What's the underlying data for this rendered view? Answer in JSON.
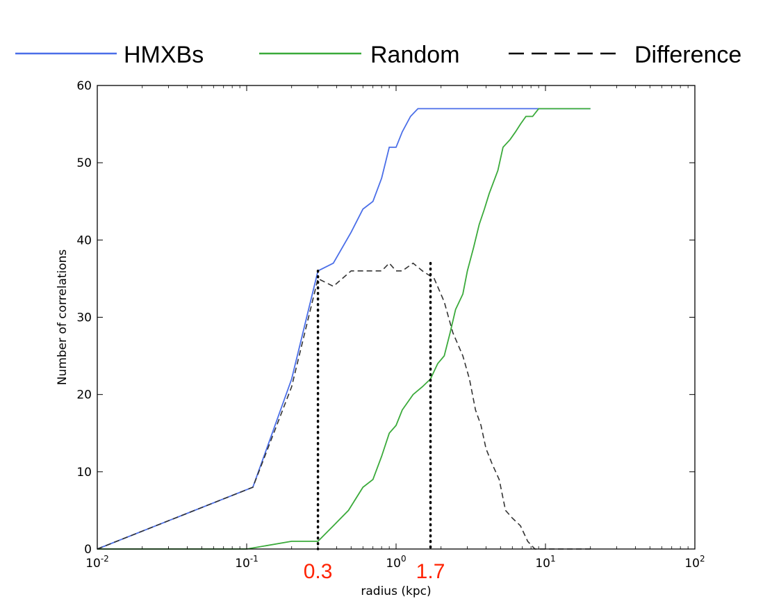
{
  "chart_data": {
    "type": "line",
    "title": "",
    "xlabel": "radius (kpc)",
    "ylabel": "Number of correlations",
    "x_scale": "log",
    "xlim": [
      0.01,
      100
    ],
    "ylim": [
      0,
      60
    ],
    "grid": false,
    "legend_position": "top",
    "x_ticks": [
      {
        "value": 0.01,
        "base": "10",
        "exp": "-2"
      },
      {
        "value": 0.1,
        "base": "10",
        "exp": "-1"
      },
      {
        "value": 1,
        "base": "10",
        "exp": "0"
      },
      {
        "value": 10,
        "base": "10",
        "exp": "1"
      },
      {
        "value": 100,
        "base": "10",
        "exp": "2"
      }
    ],
    "y_ticks": [
      0,
      10,
      20,
      30,
      40,
      50,
      60
    ],
    "series": [
      {
        "name": "HMXBs",
        "color": "#4a6ee8",
        "style": "solid",
        "points": [
          [
            0.01,
            0
          ],
          [
            0.11,
            8
          ],
          [
            0.2,
            22
          ],
          [
            0.3,
            36
          ],
          [
            0.38,
            37
          ],
          [
            0.5,
            41
          ],
          [
            0.6,
            44
          ],
          [
            0.7,
            45
          ],
          [
            0.8,
            48
          ],
          [
            0.9,
            52
          ],
          [
            1.0,
            52
          ],
          [
            1.1,
            54
          ],
          [
            1.25,
            56
          ],
          [
            1.4,
            57
          ],
          [
            3,
            57
          ],
          [
            10,
            57
          ],
          [
            20,
            57
          ]
        ]
      },
      {
        "name": "Random",
        "color": "#3aaa3a",
        "style": "solid",
        "points": [
          [
            0.01,
            0
          ],
          [
            0.1,
            0
          ],
          [
            0.2,
            1
          ],
          [
            0.3,
            1
          ],
          [
            0.38,
            3
          ],
          [
            0.48,
            5
          ],
          [
            0.6,
            8
          ],
          [
            0.7,
            9
          ],
          [
            0.8,
            12
          ],
          [
            0.9,
            15
          ],
          [
            1.0,
            16
          ],
          [
            1.1,
            18
          ],
          [
            1.3,
            20
          ],
          [
            1.5,
            21
          ],
          [
            1.7,
            22
          ],
          [
            1.9,
            24
          ],
          [
            2.1,
            25
          ],
          [
            2.3,
            28
          ],
          [
            2.5,
            31
          ],
          [
            2.8,
            33
          ],
          [
            3.0,
            36
          ],
          [
            3.3,
            39
          ],
          [
            3.6,
            42
          ],
          [
            3.9,
            44
          ],
          [
            4.2,
            46
          ],
          [
            4.8,
            49
          ],
          [
            5.2,
            52
          ],
          [
            5.8,
            53
          ],
          [
            6.3,
            54
          ],
          [
            6.8,
            55
          ],
          [
            7.4,
            56
          ],
          [
            8.2,
            56
          ],
          [
            9,
            57
          ],
          [
            20,
            57
          ]
        ]
      },
      {
        "name": "Difference",
        "color": "#333333",
        "style": "dashed",
        "points": [
          [
            0.01,
            0
          ],
          [
            0.11,
            8
          ],
          [
            0.2,
            21
          ],
          [
            0.3,
            35
          ],
          [
            0.38,
            34
          ],
          [
            0.5,
            36
          ],
          [
            0.6,
            36
          ],
          [
            0.7,
            36
          ],
          [
            0.8,
            36
          ],
          [
            0.9,
            37
          ],
          [
            1.0,
            36
          ],
          [
            1.1,
            36
          ],
          [
            1.3,
            37
          ],
          [
            1.5,
            36
          ],
          [
            1.8,
            35
          ],
          [
            2.1,
            32
          ],
          [
            2.4,
            28
          ],
          [
            2.8,
            25
          ],
          [
            3.1,
            22
          ],
          [
            3.4,
            18
          ],
          [
            3.7,
            16
          ],
          [
            4.0,
            13
          ],
          [
            4.4,
            11
          ],
          [
            4.9,
            9
          ],
          [
            5.4,
            5
          ],
          [
            6.0,
            4
          ],
          [
            6.8,
            3
          ],
          [
            7.6,
            1
          ],
          [
            8.5,
            0
          ],
          [
            9.2,
            0
          ],
          [
            20,
            0
          ]
        ]
      }
    ],
    "markers": [
      {
        "x": 0.3,
        "y": 36,
        "label": "0.3"
      },
      {
        "x": 1.7,
        "y": 37,
        "label": "1.7"
      }
    ]
  }
}
